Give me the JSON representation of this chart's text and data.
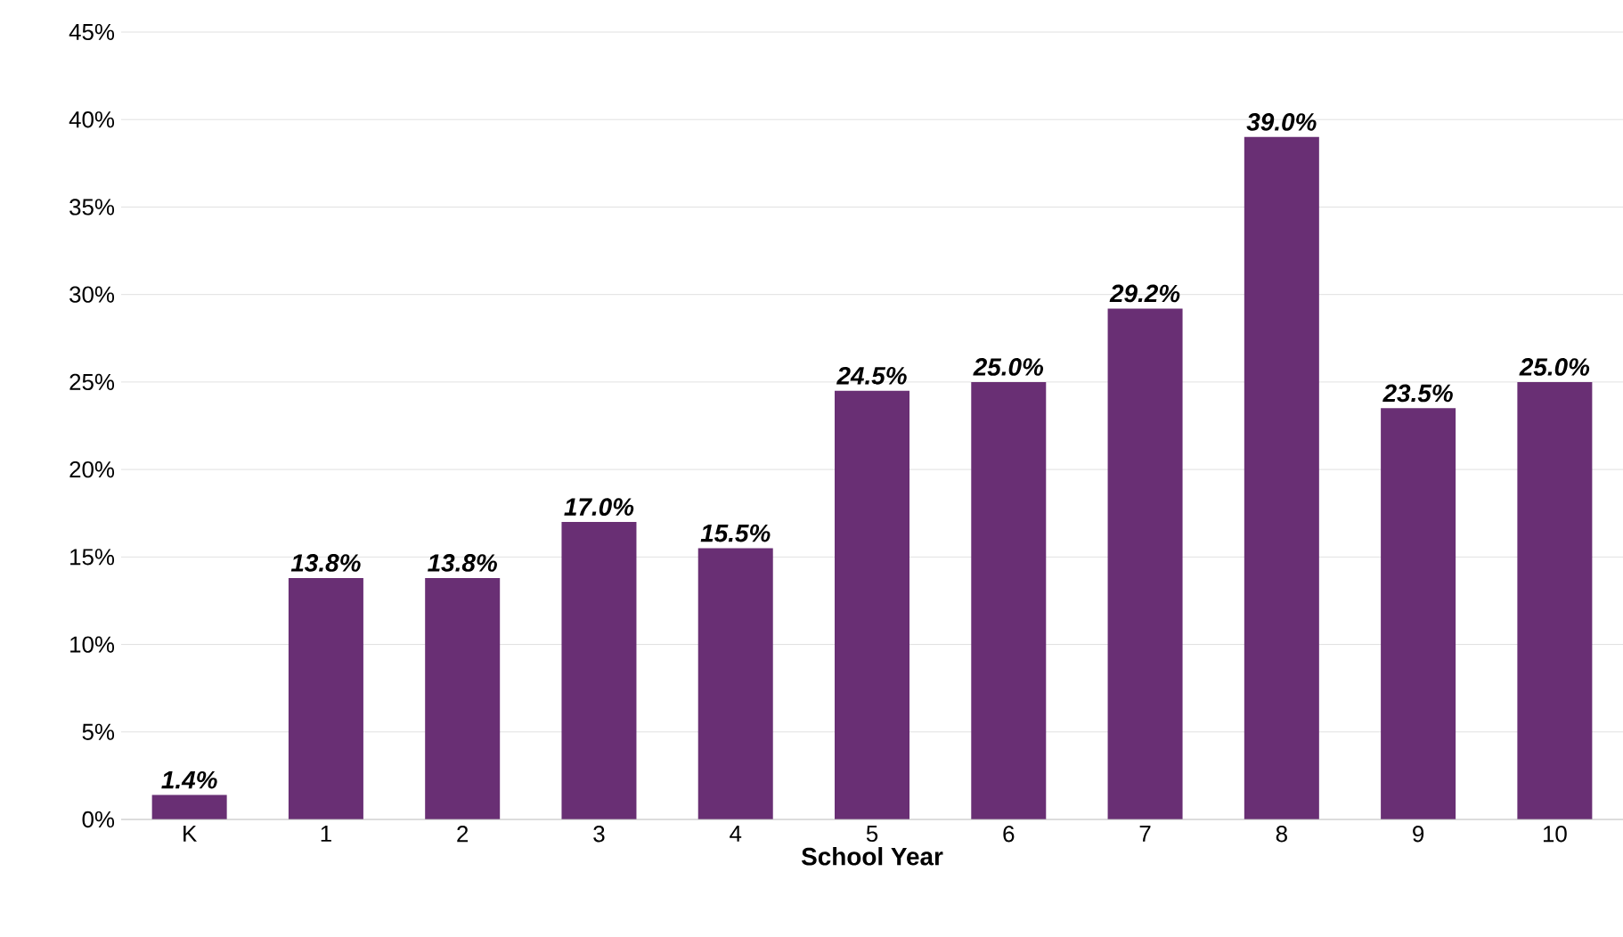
{
  "chart_data": {
    "type": "bar",
    "xlabel": "School Year",
    "categories": [
      "K",
      "1",
      "2",
      "3",
      "4",
      "5",
      "6",
      "7",
      "8",
      "9",
      "10"
    ],
    "values": [
      1.4,
      13.8,
      13.8,
      17.0,
      15.5,
      24.5,
      25.0,
      29.2,
      39.0,
      23.5,
      25.0
    ],
    "value_labels": [
      "1.4%",
      "13.8%",
      "13.8%",
      "17.0%",
      "15.5%",
      "24.5%",
      "25.0%",
      "29.2%",
      "39.0%",
      "23.5%",
      "25.0%"
    ],
    "color": "#692f74",
    "ylim": [
      0,
      45
    ],
    "yticks": [
      {
        "value": 0,
        "label": "0%"
      },
      {
        "value": 5,
        "label": "5%"
      },
      {
        "value": 10,
        "label": "10%"
      },
      {
        "value": 15,
        "label": "15%"
      },
      {
        "value": 20,
        "label": "20%"
      },
      {
        "value": 25,
        "label": "25%"
      },
      {
        "value": 30,
        "label": "30%"
      },
      {
        "value": 35,
        "label": "35%"
      },
      {
        "value": 40,
        "label": "40%"
      },
      {
        "value": 45,
        "label": "45%"
      }
    ],
    "grid": "y"
  }
}
